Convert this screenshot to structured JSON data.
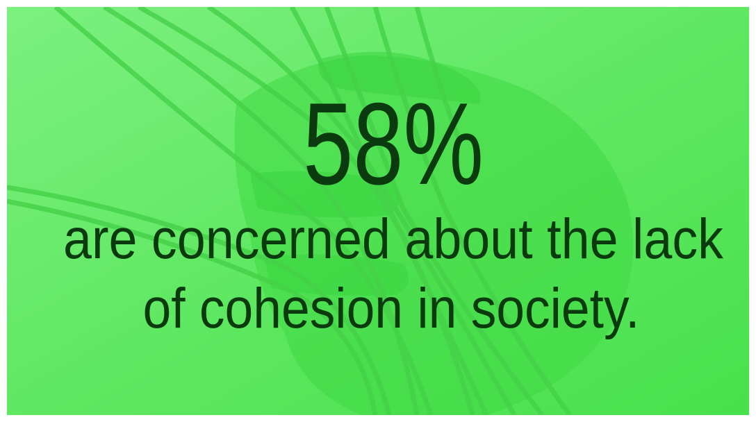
{
  "stat": "58%",
  "caption_lines": [
    "are concerned about the lack",
    "of cohesion in society."
  ]
}
